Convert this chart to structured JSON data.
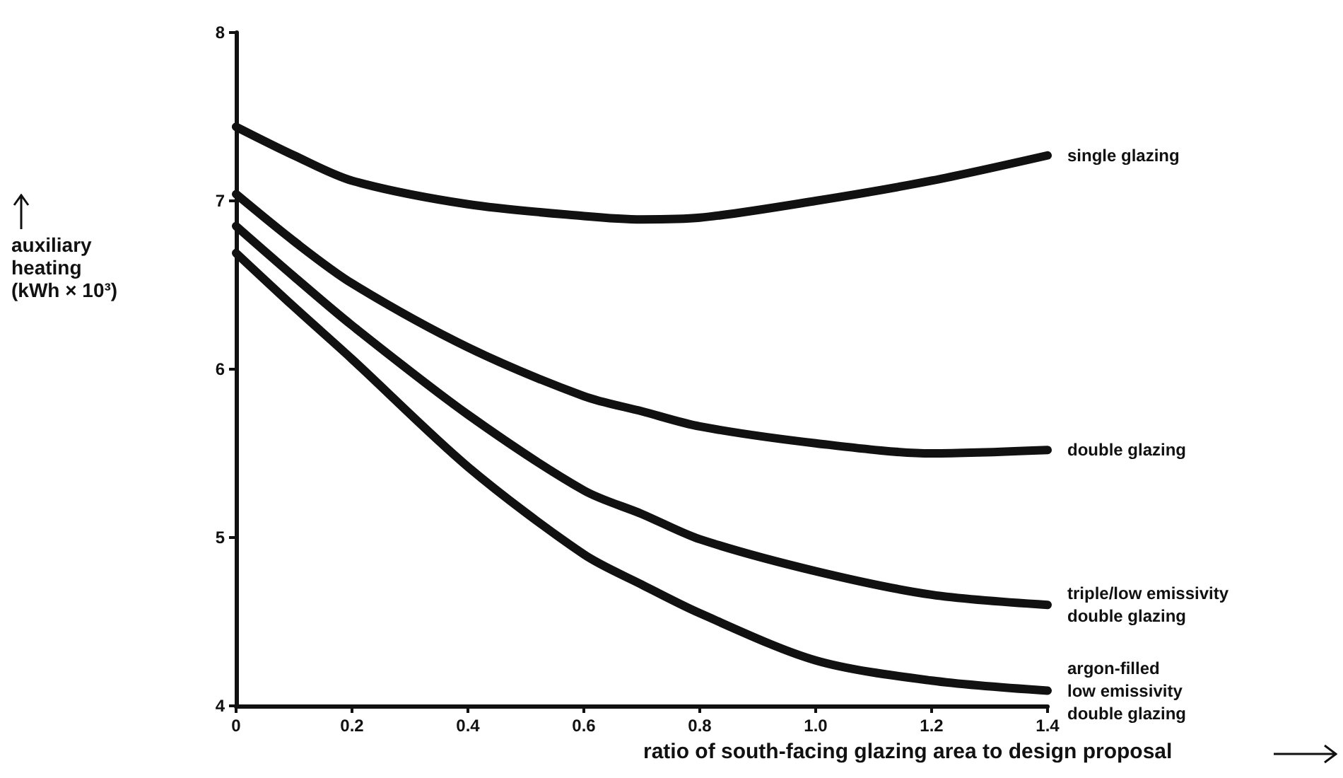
{
  "chart_data": {
    "type": "line",
    "xlabel": "ratio of south-facing glazing area to design proposal",
    "ylabel": "auxiliary\nheating\n(kWh × 10³)",
    "x": [
      0,
      0.1,
      0.2,
      0.4,
      0.6,
      0.7,
      0.8,
      1.0,
      1.2,
      1.4
    ],
    "series": [
      {
        "name": "single glazing",
        "color": "#111111",
        "values": [
          7.44,
          7.27,
          7.12,
          6.98,
          6.91,
          6.89,
          6.9,
          7.0,
          7.12,
          7.27
        ]
      },
      {
        "name": "double glazing",
        "color": "#111111",
        "values": [
          7.04,
          6.76,
          6.51,
          6.13,
          5.84,
          5.75,
          5.66,
          5.56,
          5.5,
          5.52
        ]
      },
      {
        "name": "triple/low emissivity\ndouble glazing",
        "color": "#111111",
        "values": [
          6.85,
          6.55,
          6.26,
          5.73,
          5.28,
          5.14,
          4.99,
          4.8,
          4.66,
          4.6
        ]
      },
      {
        "name": "argon-filled\nlow emissivity\ndouble glazing",
        "color": "#111111",
        "values": [
          6.69,
          6.37,
          6.06,
          5.42,
          4.9,
          4.72,
          4.55,
          4.27,
          4.15,
          4.09
        ]
      }
    ],
    "xlim": [
      0,
      1.4
    ],
    "xticks": [
      0,
      0.2,
      0.4,
      0.6,
      0.8,
      {
        "value": 1,
        "label": "1.0"
      },
      1.2,
      1.4
    ],
    "ylim": [
      4,
      8
    ],
    "yticks": [
      4,
      5,
      6,
      7,
      8
    ],
    "marker": "none",
    "line_style": "solid"
  }
}
